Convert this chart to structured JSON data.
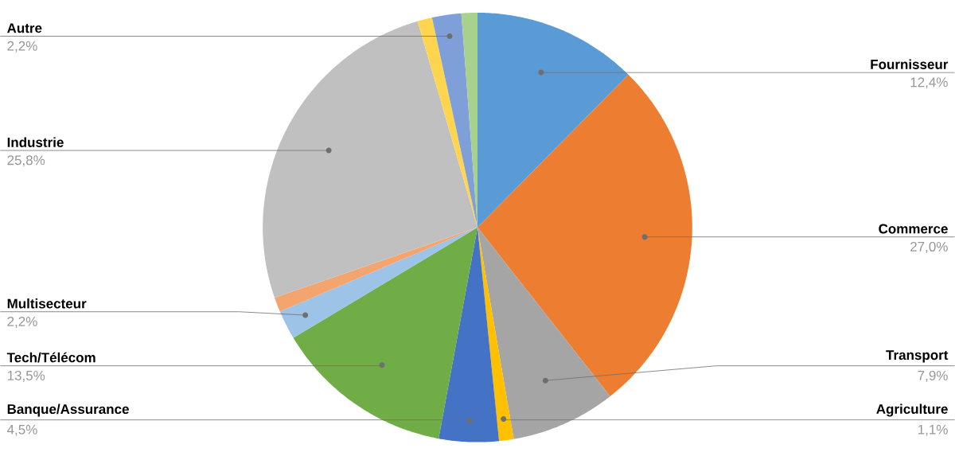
{
  "chart_data": {
    "type": "pie",
    "categories": [
      "Fournisseur",
      "Commerce",
      "Transport",
      "Agriculture",
      "Banque/Assurance",
      "Tech/Télécom",
      "Multisecteur",
      null,
      "Industrie",
      null,
      "Autre",
      null
    ],
    "values": [
      12.4,
      27.0,
      7.9,
      1.1,
      4.5,
      13.5,
      2.2,
      1.1,
      25.8,
      1.1,
      2.2,
      1.2
    ],
    "value_labels": [
      "12,4%",
      "27,0%",
      "7,9%",
      "1,1%",
      "4,5%",
      "13,5%",
      "2,2%",
      null,
      "25,8%",
      null,
      "2,2%",
      null
    ],
    "colors": [
      "#5b9bd5",
      "#ed7d31",
      "#a5a5a5",
      "#ffc000",
      "#4472c4",
      "#70ad47",
      "#9dc3e6",
      "#f4a46e",
      "#c0c0c0",
      "#ffd54f",
      "#7f9fd9",
      "#a9d18e"
    ]
  }
}
